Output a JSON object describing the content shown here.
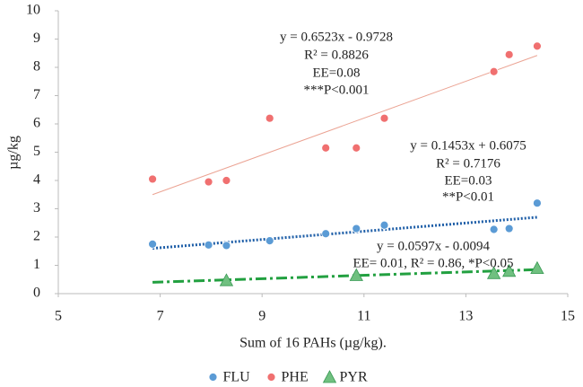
{
  "chart_data": {
    "type": "scatter",
    "xlabel": "Sum of 16 PAHs (µg/kg).",
    "ylabel": "µg/kg",
    "xlim": [
      5,
      15
    ],
    "xticks": [
      5,
      7,
      9,
      11,
      13,
      15
    ],
    "ylim": [
      0,
      10
    ],
    "yticks": [
      0,
      1,
      2,
      3,
      4,
      5,
      6,
      7,
      8,
      9,
      10
    ],
    "grid": false,
    "legend": "bottom",
    "series": [
      {
        "name": "FLU",
        "color": "#5b9bd5",
        "marker": "circle",
        "x": [
          6.85,
          7.95,
          8.3,
          9.15,
          10.25,
          10.85,
          11.4,
          13.55,
          13.85,
          14.4
        ],
        "values": [
          1.75,
          1.72,
          1.7,
          1.87,
          2.12,
          2.3,
          2.42,
          2.27,
          2.3,
          3.2
        ],
        "trendline": {
          "color": "#1f5fa8",
          "x": [
            6.85,
            14.4
          ],
          "values": [
            1.6,
            2.7
          ]
        }
      },
      {
        "name": "PHE",
        "color": "#f07070",
        "marker": "circle",
        "x": [
          6.85,
          7.95,
          8.3,
          9.15,
          10.25,
          10.85,
          11.4,
          13.55,
          13.85,
          14.4
        ],
        "values": [
          4.05,
          3.95,
          4.0,
          6.2,
          5.15,
          5.15,
          6.2,
          7.85,
          8.45,
          8.75
        ],
        "trendline": {
          "color": "#eba393",
          "x": [
            6.85,
            14.4
          ],
          "values": [
            3.5,
            8.42
          ]
        }
      },
      {
        "name": "PYR",
        "color": "#70c080",
        "marker": "triangle",
        "x": [
          8.3,
          10.85,
          13.55,
          13.85,
          14.4
        ],
        "values": [
          0.47,
          0.65,
          0.72,
          0.8,
          0.9
        ],
        "trendline": {
          "color": "#22a040",
          "x": [
            6.85,
            14.4
          ],
          "values": [
            0.4,
            0.85
          ]
        }
      }
    ],
    "annotations": [
      [
        "y = 0.6523x - 0.9728",
        "R² = 0.8826",
        "EE=0.08",
        "***P<0.001"
      ],
      [
        "y = 0.1453x + 0.6075",
        "R² = 0.7176",
        "EE=0.03",
        "**P<0.01"
      ],
      [
        "y = 0.0597x - 0.0094",
        "EE= 0.01, R² = 0.86, *P<0.05"
      ]
    ]
  }
}
